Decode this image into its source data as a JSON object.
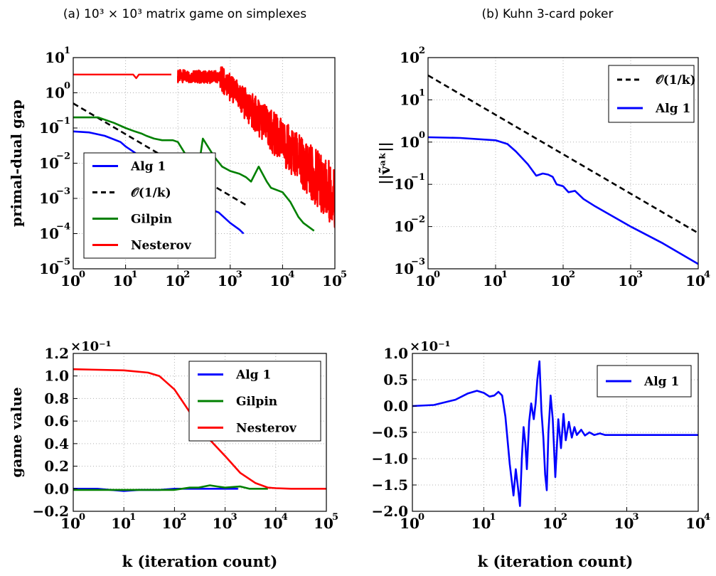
{
  "chart_data": [
    {
      "id": "a-top",
      "type": "line",
      "title": "(a) 10³ × 10³ matrix game on simplexes",
      "xscale": "log",
      "yscale": "log",
      "xlim": [
        1,
        100000
      ],
      "ylim": [
        1e-05,
        10
      ],
      "ylabel": "primal-dual gap",
      "xlabel": "",
      "grid": true,
      "legend_position": "lower-left",
      "xticks": [
        {
          "m": "10",
          "e": "0"
        },
        {
          "m": "10",
          "e": "1"
        },
        {
          "m": "10",
          "e": "2"
        },
        {
          "m": "10",
          "e": "3"
        },
        {
          "m": "10",
          "e": "4"
        },
        {
          "m": "10",
          "e": "5"
        }
      ],
      "yticks": [
        {
          "m": "10",
          "e": "−5"
        },
        {
          "m": "10",
          "e": "−4"
        },
        {
          "m": "10",
          "e": "−3"
        },
        {
          "m": "10",
          "e": "−2"
        },
        {
          "m": "10",
          "e": "−1"
        },
        {
          "m": "10",
          "e": "0"
        },
        {
          "m": "10",
          "e": "1"
        }
      ],
      "series": [
        {
          "name": "Alg 1",
          "color": "#0000ff",
          "style": "solid",
          "x": [
            1,
            2,
            4,
            8,
            10,
            20,
            40,
            80,
            100,
            200,
            400,
            600,
            1000,
            1500,
            1800
          ],
          "y": [
            0.08,
            0.075,
            0.06,
            0.04,
            0.03,
            0.015,
            0.006,
            0.002,
            0.0015,
            0.0008,
            0.0005,
            0.0004,
            0.0002,
            0.00013,
            0.0001
          ]
        },
        {
          "name": "𝒪(1/k)",
          "color": "#000000",
          "style": "dashed",
          "x": [
            1,
            2000
          ],
          "y": [
            0.5,
            0.00065
          ]
        },
        {
          "name": "Gilpin",
          "color": "#008000",
          "style": "solid",
          "x": [
            1,
            3,
            6,
            10,
            15,
            20,
            25,
            35,
            50,
            80,
            100,
            150,
            250,
            300,
            500,
            700,
            1000,
            1500,
            2000,
            2500,
            3500,
            5000,
            6000,
            10000,
            14000,
            20000,
            25000,
            40000
          ],
          "y": [
            0.2,
            0.2,
            0.14,
            0.1,
            0.08,
            0.07,
            0.06,
            0.05,
            0.045,
            0.045,
            0.04,
            0.015,
            0.008,
            0.05,
            0.015,
            0.008,
            0.006,
            0.005,
            0.004,
            0.003,
            0.008,
            0.003,
            0.002,
            0.0015,
            0.0008,
            0.0003,
            0.0002,
            0.00012
          ]
        }
      ]
    },
    {
      "id": "b-top",
      "type": "line",
      "title": "(b) Kuhn 3-card poker",
      "xscale": "log",
      "yscale": "log",
      "xlim": [
        1,
        10000
      ],
      "ylim": [
        0.001,
        100
      ],
      "ylabel": "||ṽᵃᵏ||",
      "xlabel": "",
      "grid": true,
      "legend_position": "top-right",
      "xticks": [
        {
          "m": "10",
          "e": "0"
        },
        {
          "m": "10",
          "e": "1"
        },
        {
          "m": "10",
          "e": "2"
        },
        {
          "m": "10",
          "e": "3"
        },
        {
          "m": "10",
          "e": "4"
        }
      ],
      "yticks": [
        {
          "m": "10",
          "e": "−3"
        },
        {
          "m": "10",
          "e": "−2"
        },
        {
          "m": "10",
          "e": "−1"
        },
        {
          "m": "10",
          "e": "0"
        },
        {
          "m": "10",
          "e": "1"
        },
        {
          "m": "10",
          "e": "2"
        }
      ],
      "series": [
        {
          "name": "𝒪(1/k)",
          "color": "#000000",
          "style": "dashed",
          "x": [
            1,
            10000
          ],
          "y": [
            38,
            0.007
          ]
        },
        {
          "name": "Alg 1",
          "color": "#0000ff",
          "style": "solid",
          "x": [
            1,
            3,
            10,
            15,
            20,
            30,
            40,
            50,
            60,
            70,
            80,
            100,
            120,
            150,
            200,
            300,
            1000,
            3000,
            10000
          ],
          "y": [
            1.3,
            1.25,
            1.1,
            0.9,
            0.6,
            0.3,
            0.16,
            0.18,
            0.17,
            0.15,
            0.1,
            0.09,
            0.065,
            0.07,
            0.045,
            0.03,
            0.01,
            0.004,
            0.0013
          ]
        }
      ]
    },
    {
      "id": "a-bottom",
      "type": "line",
      "title": "",
      "xscale": "log",
      "yscale": "linear",
      "xlim": [
        1,
        100000
      ],
      "ylim": [
        -0.2,
        1.2
      ],
      "offset_text": "×10⁻¹",
      "ylabel": "game value",
      "xlabel": "k (iteration count)",
      "grid": true,
      "legend_position": "top-right",
      "xticks": [
        {
          "m": "10",
          "e": "0"
        },
        {
          "m": "10",
          "e": "1"
        },
        {
          "m": "10",
          "e": "2"
        },
        {
          "m": "10",
          "e": "3"
        },
        {
          "m": "10",
          "e": "4"
        },
        {
          "m": "10",
          "e": "5"
        }
      ],
      "yticks": [
        "−0.2",
        "0.0",
        "0.2",
        "0.4",
        "0.6",
        "0.8",
        "1.0",
        "1.2"
      ],
      "series": [
        {
          "name": "Alg 1",
          "color": "#0000ff",
          "style": "solid",
          "x": [
            1,
            3,
            10,
            20,
            50,
            100,
            300,
            1000,
            1800
          ],
          "y": [
            0.0,
            0.0,
            -0.02,
            -0.01,
            -0.01,
            0.0,
            0.0,
            0.0,
            0.0
          ]
        },
        {
          "name": "Gilpin",
          "color": "#008000",
          "style": "solid",
          "x": [
            1,
            10,
            100,
            200,
            300,
            500,
            700,
            1000,
            2000,
            3000,
            5000,
            7000
          ],
          "y": [
            -0.01,
            -0.01,
            -0.01,
            0.01,
            0.01,
            0.03,
            0.02,
            0.01,
            0.02,
            0.0,
            0.0,
            0.0
          ]
        },
        {
          "name": "Nesterov",
          "color": "#ff0000",
          "style": "solid",
          "x": [
            1,
            10,
            30,
            50,
            100,
            200,
            400,
            1000,
            2000,
            4000,
            7000,
            10000,
            20000,
            100000
          ],
          "y": [
            1.06,
            1.05,
            1.03,
            1.0,
            0.88,
            0.68,
            0.48,
            0.29,
            0.14,
            0.05,
            0.01,
            0.005,
            0.0,
            0.0
          ]
        }
      ]
    },
    {
      "id": "b-bottom",
      "type": "line",
      "title": "",
      "xscale": "log",
      "yscale": "linear",
      "xlim": [
        1,
        10000
      ],
      "ylim": [
        -2.0,
        1.0
      ],
      "offset_text": "×10⁻¹",
      "ylabel": "",
      "xlabel": "k (iteration count)",
      "grid": true,
      "legend_position": "top-right",
      "xticks": [
        {
          "m": "10",
          "e": "0"
        },
        {
          "m": "10",
          "e": "1"
        },
        {
          "m": "10",
          "e": "2"
        },
        {
          "m": "10",
          "e": "3"
        },
        {
          "m": "10",
          "e": "4"
        }
      ],
      "yticks": [
        "−2.0",
        "−1.5",
        "−1.0",
        "−0.5",
        "0.0",
        "0.5",
        "1.0"
      ],
      "series": [
        {
          "name": "Alg 1",
          "color": "#0000ff",
          "style": "solid",
          "x": [
            1,
            2,
            4,
            6,
            8,
            10,
            12,
            14,
            16,
            18,
            20,
            23,
            26,
            28,
            30,
            32,
            34,
            36,
            38,
            40,
            43,
            46,
            50,
            53,
            56,
            60,
            64,
            68,
            72,
            76,
            80,
            86,
            92,
            100,
            110,
            120,
            130,
            140,
            155,
            170,
            185,
            200,
            230,
            260,
            300,
            350,
            420,
            500,
            650,
            1000,
            2000,
            5000,
            10000
          ],
          "y": [
            0.0,
            0.02,
            0.12,
            0.24,
            0.29,
            0.25,
            0.18,
            0.2,
            0.27,
            0.2,
            -0.2,
            -1.1,
            -1.7,
            -1.2,
            -1.55,
            -1.9,
            -1.0,
            -0.4,
            -0.7,
            -1.2,
            -0.3,
            0.05,
            -0.25,
            0.05,
            0.5,
            0.85,
            -0.1,
            -0.6,
            -1.3,
            -1.6,
            -0.5,
            0.2,
            -0.25,
            -1.35,
            -0.25,
            -0.8,
            -0.15,
            -0.65,
            -0.3,
            -0.6,
            -0.4,
            -0.55,
            -0.45,
            -0.56,
            -0.5,
            -0.55,
            -0.52,
            -0.55,
            -0.55,
            -0.55,
            -0.55,
            -0.55,
            -0.55
          ]
        }
      ]
    }
  ]
}
